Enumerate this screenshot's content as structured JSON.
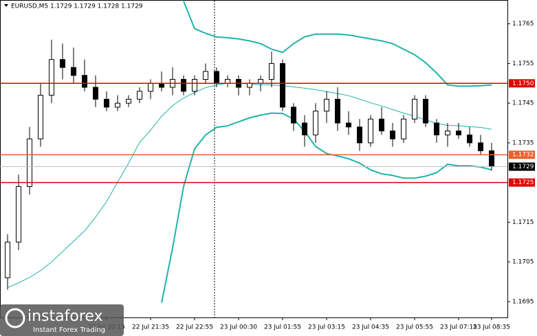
{
  "chart_data": {
    "type": "candlestick",
    "title": "EURUSD,M5  1.1729 1.1729 1.1728 1.1729",
    "categories": [
      null,
      null,
      null,
      null,
      null,
      null,
      null,
      null,
      null,
      "22 Jul 20:15",
      null,
      null,
      null,
      "22 Jul 21:35",
      null,
      null,
      null,
      "22 Jul 22:55",
      null,
      null,
      null,
      "23 Jul 00:30",
      null,
      null,
      null,
      "23 Jul 01:55",
      null,
      null,
      null,
      "23 Jul 03:15",
      null,
      null,
      null,
      "23 Jul 04:35",
      null,
      null,
      null,
      "23 Jul 05:55",
      null,
      null,
      null,
      "23 Jul 07:15",
      null,
      null,
      "23 Jul 08:35"
    ],
    "open": [
      1.1701,
      1.171,
      1.1724,
      1.1736,
      1.1747,
      1.1756,
      1.1754,
      1.1752,
      1.1749,
      1.1746,
      1.1744,
      1.1745,
      1.1746,
      1.1748,
      1.175,
      1.1749,
      1.1751,
      1.1748,
      1.1751,
      1.1753,
      1.175,
      1.1751,
      1.1749,
      1.175,
      1.1751,
      1.1755,
      1.1744,
      1.174,
      1.1737,
      1.1743,
      1.1746,
      1.174,
      1.1739,
      1.1735,
      1.1741,
      1.1738,
      1.1736,
      1.1741,
      1.1746,
      1.174,
      1.1737,
      1.1738,
      1.1737,
      1.1735,
      1.1733
    ],
    "high": [
      1.1712,
      1.1727,
      1.1739,
      1.175,
      1.1761,
      1.176,
      1.1759,
      1.1756,
      1.1752,
      1.1748,
      1.1747,
      1.1747,
      1.1749,
      1.1751,
      1.1753,
      1.1754,
      1.1752,
      1.1752,
      1.1755,
      1.1754,
      1.1752,
      1.1752,
      1.1751,
      1.1752,
      1.1758,
      1.1756,
      1.1745,
      1.1742,
      1.1745,
      1.1748,
      1.1749,
      1.1743,
      1.1741,
      1.1742,
      1.1744,
      1.174,
      1.1742,
      1.1747,
      1.1747,
      1.1741,
      1.174,
      1.174,
      1.1739,
      1.1737,
      1.1735
    ],
    "low": [
      1.1698,
      1.1708,
      1.1722,
      1.1734,
      1.1745,
      1.1751,
      1.175,
      1.1748,
      1.1744,
      1.1743,
      1.1743,
      1.1744,
      1.1745,
      1.1746,
      1.1748,
      1.1747,
      1.1747,
      1.1747,
      1.175,
      1.1749,
      1.1749,
      1.1747,
      1.1747,
      1.1748,
      1.1749,
      1.1743,
      1.1738,
      1.1734,
      1.1735,
      1.174,
      1.1738,
      1.1737,
      1.1733,
      1.1734,
      1.1737,
      1.1734,
      1.1735,
      1.174,
      1.1739,
      1.1735,
      1.1734,
      1.1736,
      1.1734,
      1.1732,
      1.1728
    ],
    "close": [
      1.171,
      1.1724,
      1.1736,
      1.1747,
      1.1756,
      1.1754,
      1.1752,
      1.1749,
      1.1746,
      1.1744,
      1.1745,
      1.1746,
      1.1748,
      1.175,
      1.1749,
      1.1751,
      1.1748,
      1.1751,
      1.1753,
      1.175,
      1.1751,
      1.1749,
      1.175,
      1.1751,
      1.1755,
      1.1744,
      1.174,
      1.1737,
      1.1743,
      1.1746,
      1.174,
      1.1739,
      1.1735,
      1.1741,
      1.1738,
      1.1736,
      1.1741,
      1.1746,
      1.174,
      1.1737,
      1.1738,
      1.1737,
      1.1735,
      1.1733,
      1.1729
    ],
    "series": [
      {
        "color": "#20b2aa",
        "values": [
          null,
          null,
          null,
          null,
          null,
          null,
          null,
          null,
          null,
          null,
          null,
          null,
          null,
          null,
          null,
          null,
          1.17707,
          1.17638,
          1.17626,
          1.17617,
          1.17615,
          1.17612,
          1.17607,
          1.176,
          1.17586,
          1.17578,
          1.176,
          1.17617,
          1.17624,
          1.17624,
          1.17624,
          1.17622,
          1.17617,
          1.17612,
          1.17607,
          1.176,
          1.17586,
          1.17572,
          1.17552,
          1.17526,
          1.17496,
          1.17493,
          1.17493,
          1.17494,
          1.17496
        ]
      },
      {
        "color": "#20b2aa",
        "values": [
          1.16985,
          1.16997,
          1.17011,
          1.17028,
          1.1705,
          1.17076,
          1.17102,
          1.17128,
          1.17163,
          1.17202,
          1.17251,
          1.17299,
          1.17351,
          1.17382,
          1.17417,
          1.17444,
          1.17463,
          1.17477,
          1.17489,
          1.17496,
          1.175,
          1.175,
          1.17498,
          1.17496,
          1.17496,
          1.17494,
          1.17491,
          1.17488,
          1.17484,
          1.17479,
          1.17474,
          1.17469,
          1.1746,
          1.17451,
          1.17443,
          1.17434,
          1.17425,
          1.17417,
          1.17408,
          1.17399,
          1.17394,
          1.17393,
          1.17391,
          1.17389,
          1.17384
        ]
      },
      {
        "color": "#20b2aa",
        "values": [
          null,
          null,
          null,
          null,
          null,
          null,
          null,
          null,
          null,
          null,
          null,
          null,
          null,
          null,
          1.16947,
          1.17085,
          1.1724,
          1.17335,
          1.1737,
          1.17389,
          1.17393,
          1.17403,
          1.17413,
          1.1742,
          1.17425,
          1.17424,
          1.1741,
          1.17379,
          1.17341,
          1.17323,
          1.17317,
          1.1731,
          1.17299,
          1.17282,
          1.17272,
          1.17268,
          1.17261,
          1.17261,
          1.17266,
          1.17275,
          1.17296,
          1.17292,
          1.17292,
          1.17289,
          1.17282
        ]
      }
    ],
    "ylim": [
      1.1691,
      1.1771
    ],
    "yticks": [
      1.1765,
      1.1755,
      1.1745,
      1.1735,
      1.1715,
      1.1705,
      1.1695
    ],
    "levels": [
      {
        "value": 1.175,
        "label": "1.1750",
        "color": "#e00000"
      },
      {
        "value": 1.1732,
        "label": "1.1732",
        "color": "#e8602c"
      },
      {
        "value": 1.1725,
        "label": "1.1725",
        "color": "#e00000"
      }
    ],
    "last_price": 1.1729,
    "watermark": {
      "brand": "instaforex",
      "slogan": "Instant Forex Trading"
    }
  }
}
